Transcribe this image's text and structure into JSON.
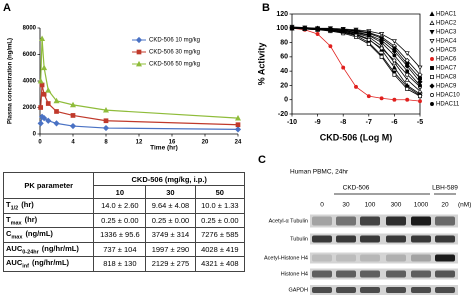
{
  "panel_labels": [
    "A",
    "B",
    "C"
  ],
  "chart_data": [
    {
      "type": "line",
      "y_label": "Plasma concentration (ng/mL)",
      "x_label": "Time (hr)",
      "x": [
        0.083,
        0.25,
        0.5,
        1,
        2,
        4,
        8,
        24
      ],
      "xlim": [
        0,
        24
      ],
      "xticks": [
        0,
        4,
        8,
        12,
        16,
        20,
        24
      ],
      "ylim": [
        0,
        8000
      ],
      "yticks": [
        0,
        2000,
        4000,
        6000,
        8000
      ],
      "legend": "upper right",
      "series": [
        {
          "name": "CKD-506 10 mg/kg",
          "color": "#4a72c4",
          "marker": "diamond",
          "filled": true,
          "values": [
            800,
            1300,
            1200,
            1000,
            800,
            600,
            450,
            350
          ]
        },
        {
          "name": "CKD-506 30 mg/kg",
          "color": "#c0392b",
          "marker": "square",
          "filled": true,
          "values": [
            2000,
            3700,
            3000,
            2300,
            1700,
            1400,
            1000,
            700
          ]
        },
        {
          "name": "CKD-506 50 mg/kg",
          "color": "#8fbc3a",
          "marker": "triangle",
          "filled": true,
          "values": [
            4000,
            7200,
            5000,
            3300,
            2500,
            2200,
            1800,
            1200
          ]
        }
      ]
    },
    {
      "type": "line",
      "y_label": "% Activity",
      "x_label": "CKD-506 (Log M)",
      "x": [
        -10,
        -9.5,
        -9,
        -8.5,
        -8,
        -7.5,
        -7,
        -6.5,
        -6,
        -5.5,
        -5
      ],
      "xlim": [
        -10,
        -5
      ],
      "xticks": [
        -10,
        -9,
        -8,
        -7,
        -6,
        -5
      ],
      "ylim": [
        -20,
        120
      ],
      "yticks": [
        -20,
        0,
        20,
        40,
        60,
        80,
        100,
        120
      ],
      "legend": "outside right",
      "series": [
        {
          "name": "HDAC1",
          "color": "#000000",
          "marker": "triangle",
          "filled": true,
          "values": [
            100,
            99,
            98,
            97,
            95,
            92,
            85,
            70,
            45,
            20,
            8
          ]
        },
        {
          "name": "HDAC2",
          "color": "#000000",
          "marker": "triangle",
          "filled": false,
          "values": [
            100,
            100,
            99,
            98,
            96,
            93,
            88,
            75,
            52,
            28,
            12
          ]
        },
        {
          "name": "HDAC3",
          "color": "#000000",
          "marker": "triangle-down",
          "filled": true,
          "values": [
            100,
            99,
            99,
            97,
            94,
            90,
            80,
            62,
            38,
            18,
            6
          ]
        },
        {
          "name": "HDAC4",
          "color": "#000000",
          "marker": "triangle-down",
          "filled": false,
          "values": [
            102,
            101,
            100,
            100,
            99,
            98,
            96,
            92,
            82,
            65,
            45
          ]
        },
        {
          "name": "HDAC5",
          "color": "#000000",
          "marker": "diamond",
          "filled": false,
          "values": [
            101,
            100,
            100,
            99,
            98,
            97,
            94,
            88,
            75,
            55,
            35
          ]
        },
        {
          "name": "HDAC6",
          "color": "#e0201e",
          "marker": "circle",
          "filled": true,
          "values": [
            100,
            98,
            92,
            75,
            45,
            18,
            5,
            2,
            0,
            0,
            -2
          ]
        },
        {
          "name": "HDAC7",
          "color": "#000000",
          "marker": "square",
          "filled": true,
          "values": [
            100,
            100,
            99,
            99,
            98,
            96,
            93,
            86,
            72,
            50,
            30
          ]
        },
        {
          "name": "HDAC8",
          "color": "#000000",
          "marker": "square",
          "filled": false,
          "values": [
            100,
            99,
            98,
            96,
            93,
            88,
            78,
            60,
            35,
            15,
            5
          ]
        },
        {
          "name": "HDAC9",
          "color": "#000000",
          "marker": "diamond",
          "filled": true,
          "values": [
            101,
            100,
            100,
            99,
            97,
            95,
            91,
            83,
            68,
            47,
            25
          ]
        },
        {
          "name": "HDAC10",
          "color": "#000000",
          "marker": "circle",
          "filled": false,
          "values": [
            100,
            99,
            98,
            97,
            95,
            91,
            84,
            72,
            55,
            35,
            18
          ]
        },
        {
          "name": "HDAC11",
          "color": "#000000",
          "marker": "circle",
          "filled": true,
          "values": [
            100,
            100,
            99,
            98,
            96,
            94,
            90,
            80,
            62,
            40,
            20
          ]
        }
      ]
    }
  ],
  "table": {
    "header": "PK parameter",
    "group": "CKD-506 (mg/kg, i.p.)",
    "columns": [
      "10",
      "30",
      "50"
    ],
    "rows": [
      {
        "param": "T",
        "sub": "1/2",
        "unit": "(hr)",
        "cells": [
          "14.0 ± 2.60",
          "9.64 ± 4.08",
          "10.0 ± 1.33"
        ]
      },
      {
        "param": "T",
        "sub": "max",
        "unit": "(hr)",
        "cells": [
          "0.25 ± 0.00",
          "0.25 ± 0.00",
          "0.25 ± 0.00"
        ]
      },
      {
        "param": "C",
        "sub": "max",
        "unit": "(ng/mL)",
        "cells": [
          "1336 ± 95.6",
          "3749 ± 314",
          "7276 ± 585"
        ]
      },
      {
        "param": "AUC",
        "sub": "0-24hr",
        "unit": "(ng/hr/mL)",
        "cells": [
          "737 ± 104",
          "1997 ± 290",
          "4028 ± 419"
        ]
      },
      {
        "param": "AUC",
        "sub": "inf",
        "unit": "(ng/hr/mL)",
        "cells": [
          "818 ± 130",
          "2129 ± 275",
          "4321 ± 408"
        ]
      }
    ]
  },
  "blot": {
    "title": "Human PBMC, 24hr",
    "groups": [
      "CKD-506",
      "LBH-589"
    ],
    "lanes": [
      "0",
      "30",
      "100",
      "300",
      "1000",
      "20"
    ],
    "unit": "(nM)",
    "rows": [
      "Acetyl-α Tubulin",
      "Tubulin",
      "Acetyl-Histone H4",
      "Histone H4",
      "GAPDH"
    ]
  }
}
